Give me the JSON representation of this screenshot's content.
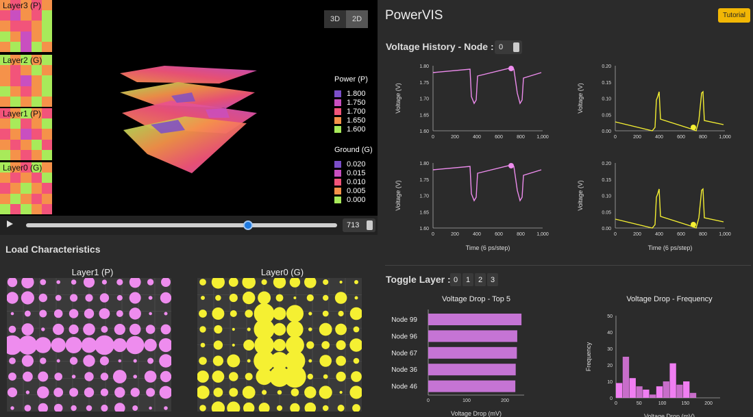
{
  "layers": [
    {
      "label": "Layer3 (P)"
    },
    {
      "label": "Layer2 (G)"
    },
    {
      "label": "Layer1 (P)"
    },
    {
      "label": "Layer0 (G)"
    }
  ],
  "view_toggle": {
    "btn_3d": "3D",
    "btn_2d": "2D",
    "active": "2D"
  },
  "legend_power": {
    "title": "Power (P)",
    "items": [
      {
        "value": "1.800",
        "color": "#7b4ec9"
      },
      {
        "value": "1.750",
        "color": "#c94fc0"
      },
      {
        "value": "1.700",
        "color": "#f2547a"
      },
      {
        "value": "1.650",
        "color": "#f5924a"
      },
      {
        "value": "1.600",
        "color": "#a8ea5a"
      }
    ]
  },
  "legend_ground": {
    "title": "Ground (G)",
    "items": [
      {
        "value": "0.020",
        "color": "#7b4ec9"
      },
      {
        "value": "0.015",
        "color": "#c94fc0"
      },
      {
        "value": "0.010",
        "color": "#f2547a"
      },
      {
        "value": "0.005",
        "color": "#f5924a"
      },
      {
        "value": "0.000",
        "color": "#a8ea5a"
      }
    ]
  },
  "timeline": {
    "value": "713",
    "progress": 0.713
  },
  "load": {
    "title": "Load Characteristics",
    "left_label": "Layer1 (P)",
    "right_label": "Layer0 (G)"
  },
  "app": {
    "title": "PowerVIS",
    "tutorial": "Tutorial"
  },
  "voltage_history": {
    "title": "Voltage History - Node :",
    "node": "0"
  },
  "history_charts": {
    "power": {
      "ylabel": "Voltage (V)",
      "yticks": [
        "1.80",
        "1.75",
        "1.70",
        "1.65",
        "1.60"
      ],
      "xticks": [
        "0",
        "200",
        "400",
        "600",
        "800",
        "1,000"
      ]
    },
    "ground": {
      "ylabel": "Voltage (V)",
      "yticks": [
        "0.20",
        "0.15",
        "0.10",
        "0.05",
        "0.00"
      ],
      "xticks": [
        "0",
        "200",
        "400",
        "600",
        "800",
        "1,000"
      ]
    },
    "xlabel": "Time (6 ps/step)"
  },
  "toggle_layer": {
    "title": "Toggle Layer :",
    "options": [
      "0",
      "1",
      "2",
      "3"
    ]
  },
  "chart_data": [
    {
      "type": "bar",
      "title": "Voltage Drop - Top 5",
      "categories": [
        "Node 99",
        "Node 96",
        "Node 67",
        "Node 36",
        "Node 46"
      ],
      "values": [
        243,
        232,
        231,
        228,
        227
      ],
      "xlabel": "Voltage Drop (mV)",
      "xticks": [
        "0",
        "100",
        "200"
      ],
      "xlim": [
        0,
        250
      ],
      "color": "#c574d4"
    },
    {
      "type": "bar",
      "title": "Voltage Drop - Frequency",
      "categories": [
        "0",
        "15",
        "30",
        "45",
        "60",
        "75",
        "90",
        "105",
        "120",
        "135",
        "150",
        "165",
        "180",
        "195",
        "210"
      ],
      "values": [
        9,
        25,
        12,
        7,
        5,
        2,
        7,
        10,
        21,
        8,
        10,
        3,
        0,
        0,
        0
      ],
      "xlabel": "Voltage Drop (mV)",
      "ylabel": "Frequency",
      "xticks": [
        "0",
        "50",
        "100",
        "150",
        "200"
      ],
      "yticks": [
        "50",
        "40",
        "30",
        "20",
        "10",
        "0"
      ],
      "ylim": [
        0,
        50
      ],
      "color": "#f07ef2"
    }
  ]
}
